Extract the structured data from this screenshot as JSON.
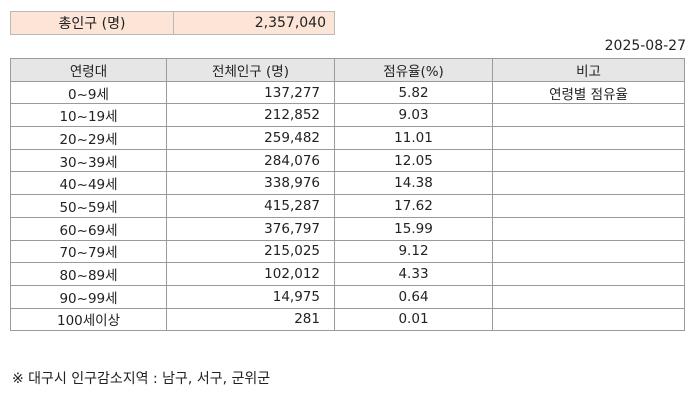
{
  "summary": {
    "label": "총인구 (명)",
    "value": "2,357,040"
  },
  "date": "2025-08-27",
  "table": {
    "headers": [
      "연령대",
      "전체인구 (명)",
      "점유율(%)",
      "비고"
    ],
    "rows": [
      {
        "age": "0~9세",
        "population": "137,277",
        "share": "5.82",
        "note": "연령별 점유율"
      },
      {
        "age": "10~19세",
        "population": "212,852",
        "share": "9.03",
        "note": ""
      },
      {
        "age": "20~29세",
        "population": "259,482",
        "share": "11.01",
        "note": ""
      },
      {
        "age": "30~39세",
        "population": "284,076",
        "share": "12.05",
        "note": ""
      },
      {
        "age": "40~49세",
        "population": "338,976",
        "share": "14.38",
        "note": ""
      },
      {
        "age": "50~59세",
        "population": "415,287",
        "share": "17.62",
        "note": ""
      },
      {
        "age": "60~69세",
        "population": "376,797",
        "share": "15.99",
        "note": ""
      },
      {
        "age": "70~79세",
        "population": "215,025",
        "share": "9.12",
        "note": ""
      },
      {
        "age": "80~89세",
        "population": "102,012",
        "share": "4.33",
        "note": ""
      },
      {
        "age": "90~99세",
        "population": "14,975",
        "share": "0.64",
        "note": ""
      },
      {
        "age": "100세이상",
        "population": "281",
        "share": "0.01",
        "note": ""
      }
    ]
  },
  "footnote": "※ 대구시 인구감소지역 : 남구, 서구, 군위군",
  "colors": {
    "summary_bg": "#fce4d6",
    "header_bg": "#e7e6e6",
    "border": "#9a9a9a"
  }
}
